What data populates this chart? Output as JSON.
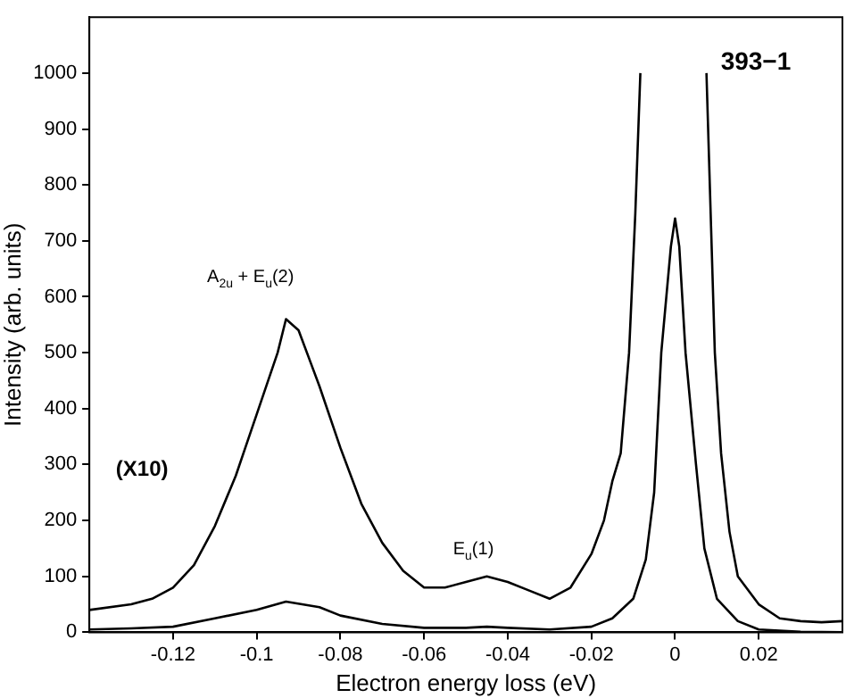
{
  "chart_data": {
    "type": "line",
    "xlabel": "Electron energy loss (eV)",
    "ylabel": "Intensity (arb. units)",
    "xlim": [
      -0.14,
      0.04
    ],
    "ylim": [
      0,
      1100
    ],
    "xticks": [
      -0.12,
      -0.1,
      -0.08,
      -0.06,
      -0.04,
      -0.02,
      0,
      0.02
    ],
    "yticks": [
      0,
      100,
      200,
      300,
      400,
      500,
      600,
      700,
      800,
      900,
      1000
    ],
    "grid": false,
    "legend": false,
    "marker": "none",
    "line_style": "solid",
    "series": [
      {
        "color": "#000000",
        "x": [
          -0.14,
          -0.13,
          -0.12,
          -0.11,
          -0.1,
          -0.093,
          -0.085,
          -0.08,
          -0.07,
          -0.06,
          -0.05,
          -0.045,
          -0.04,
          -0.03,
          -0.02,
          -0.015,
          -0.01,
          -0.007,
          -0.005,
          -0.0033,
          -0.001,
          0,
          0.001,
          0.0025,
          0.005,
          0.007,
          0.01,
          0.015,
          0.02,
          0.03,
          0.04
        ],
        "values": [
          5,
          7,
          10,
          25,
          40,
          55,
          45,
          30,
          15,
          8,
          8,
          10,
          8,
          5,
          10,
          25,
          60,
          130,
          250,
          500,
          690,
          740,
          690,
          500,
          300,
          150,
          60,
          20,
          5,
          1,
          0
        ]
      },
      {
        "color": "#000000",
        "x": [
          -0.14,
          -0.13,
          -0.125,
          -0.12,
          -0.115,
          -0.11,
          -0.105,
          -0.1,
          -0.095,
          -0.093,
          -0.09,
          -0.087,
          -0.085,
          -0.08,
          -0.075,
          -0.07,
          -0.065,
          -0.06,
          -0.055,
          -0.05,
          -0.045,
          -0.04,
          -0.035,
          -0.03,
          -0.025,
          -0.02,
          -0.017,
          -0.015,
          -0.013,
          -0.011,
          -0.0095,
          -0.0083,
          0,
          0.0075,
          0.0085,
          0.0095,
          0.011,
          0.013,
          0.015,
          0.02,
          0.025,
          0.03,
          0.035,
          0.04
        ],
        "values": [
          40,
          50,
          60,
          80,
          120,
          190,
          280,
          390,
          500,
          560,
          540,
          480,
          440,
          330,
          230,
          160,
          110,
          80,
          80,
          90,
          100,
          90,
          75,
          60,
          80,
          140,
          200,
          270,
          320,
          500,
          750,
          1000,
          null,
          1000,
          750,
          500,
          320,
          180,
          100,
          50,
          25,
          20,
          18,
          20
        ]
      }
    ],
    "annotations": [
      "393−1",
      "(X10)",
      "A$_{2u}$ + E$_{u}$(2)",
      "E$_{u}$(1)"
    ]
  }
}
